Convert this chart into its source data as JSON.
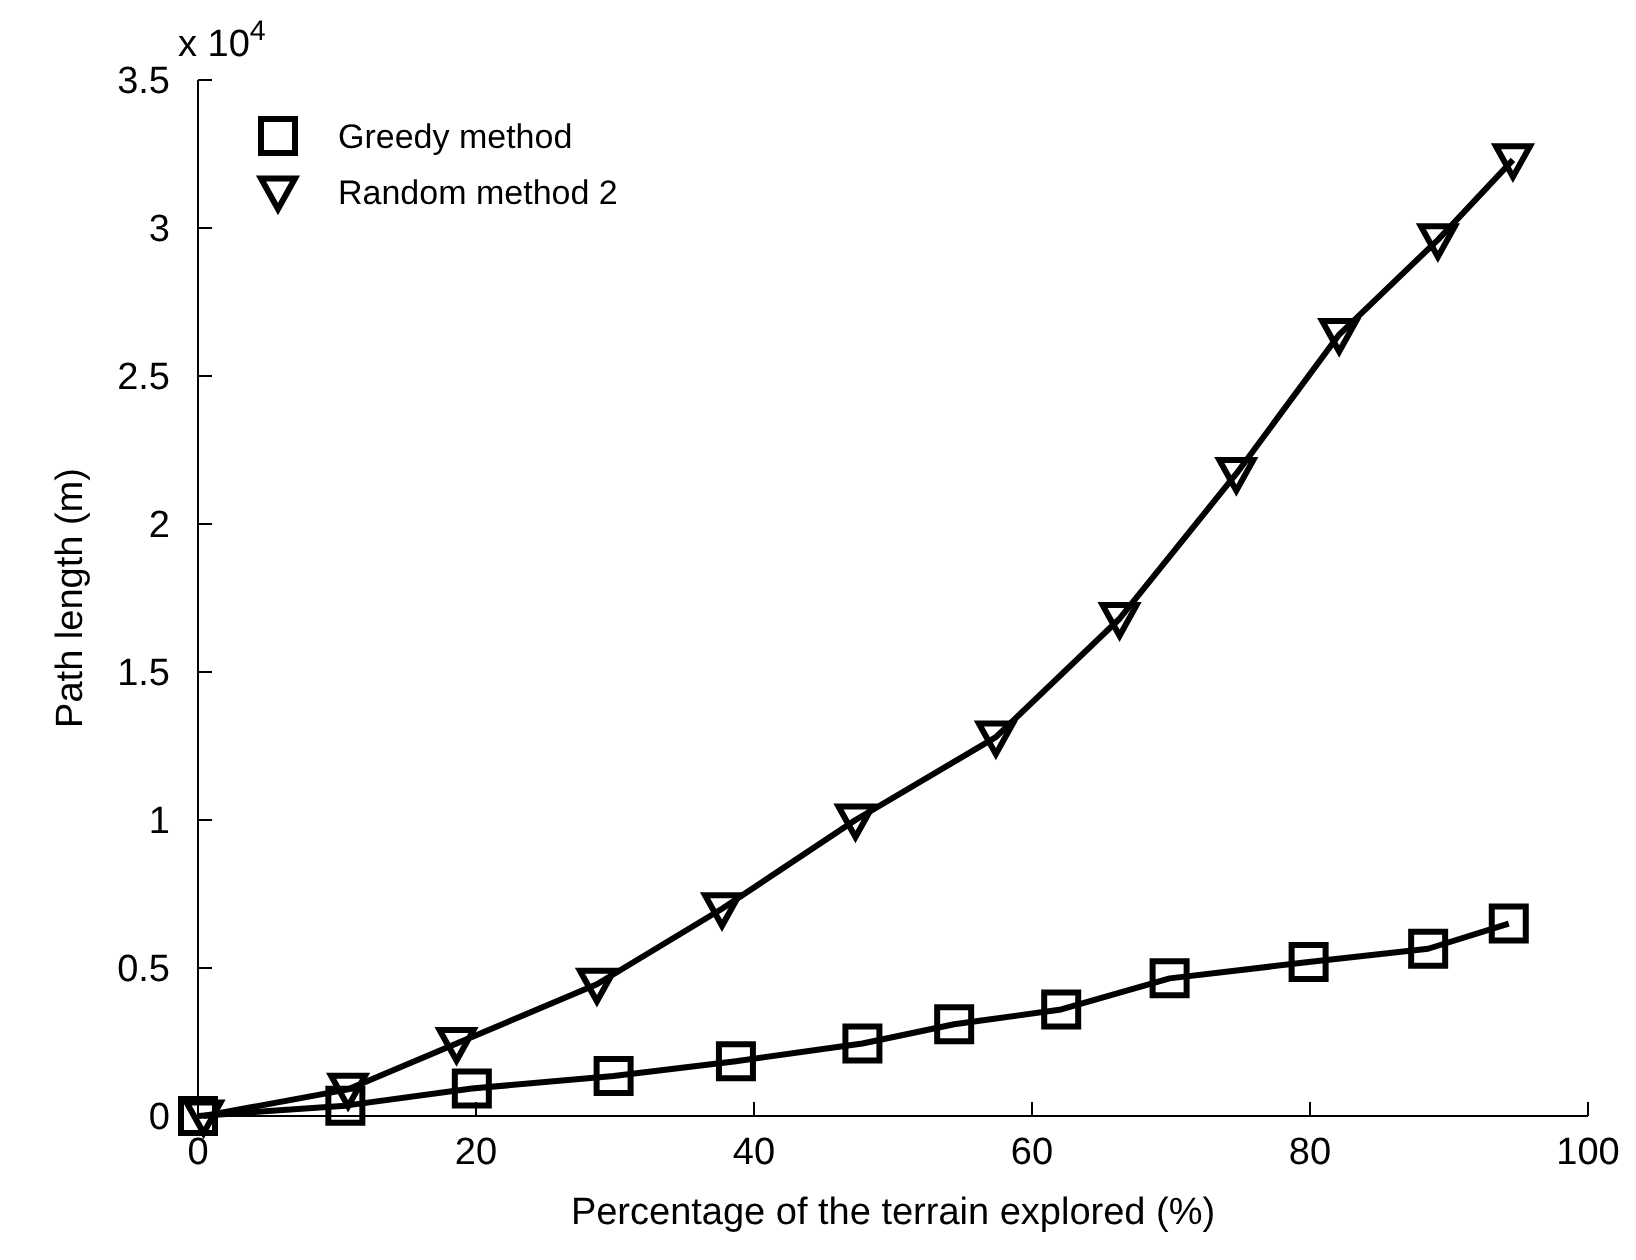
{
  "chart_data": {
    "type": "line",
    "xlabel": "Percentage of the terrain explored (%)",
    "ylabel": "Path length (m)",
    "annotations": [
      "x 10$^{4}$"
    ],
    "xlim": [
      0,
      100
    ],
    "xticks": [
      0,
      20,
      40,
      60,
      80,
      100
    ],
    "ylim": [
      0,
      3.5
    ],
    "yticks": [
      0,
      0.5,
      1,
      1.5,
      2,
      2.5,
      3,
      3.5
    ],
    "legend": "top left",
    "marker": "square",
    "line_style": "solid",
    "grid": false,
    "series": [
      {
        "name": "Greedy method",
        "color": "#000000",
        "x": [
          0,
          10.6,
          19.7,
          29.9,
          38.7,
          47.8,
          54.4,
          62.1,
          69.9,
          79.9,
          88.5,
          94.3
        ],
        "values": [
          0,
          0.035,
          0.093,
          0.135,
          0.185,
          0.245,
          0.31,
          0.36,
          0.465,
          0.52,
          0.565,
          0.65
        ]
      },
      {
        "name": "Random method 2",
        "color": "#000000",
        "marker": "triangle-down",
        "x": [
          0.4,
          10.8,
          18.6,
          28.7,
          37.7,
          47.3,
          57.4,
          66.3,
          74.7,
          82.1,
          89.2,
          94.6
        ],
        "values": [
          0,
          0.09,
          0.245,
          0.445,
          0.7,
          1.0,
          1.28,
          1.68,
          2.17,
          2.64,
          2.96,
          3.23
        ]
      }
    ]
  }
}
